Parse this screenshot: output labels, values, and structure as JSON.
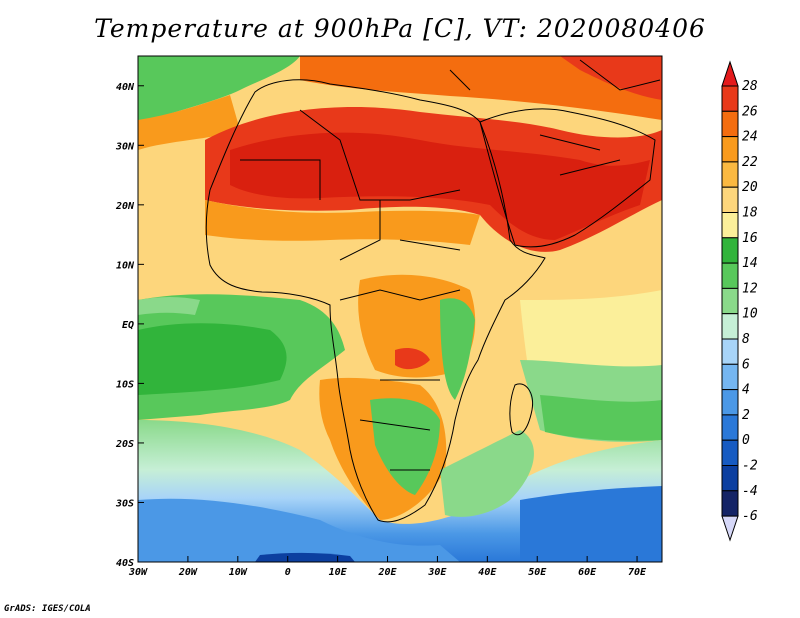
{
  "title": "Temperature at 900hPa [C], VT: 2020080406",
  "credit": "GrADS: IGES/COLA",
  "axes": {
    "x_ticks": [
      "30W",
      "20W",
      "10W",
      "0",
      "10E",
      "20E",
      "30E",
      "40E",
      "50E",
      "60E",
      "70E"
    ],
    "y_ticks": [
      "40N",
      "30N",
      "20N",
      "10N",
      "EQ",
      "10S",
      "20S",
      "30S",
      "40S"
    ],
    "lon_range": [
      -30,
      75
    ],
    "lat_range": [
      -40,
      45
    ]
  },
  "colorbar": {
    "levels": [
      "28",
      "26",
      "24",
      "22",
      "20",
      "18",
      "16",
      "14",
      "12",
      "10",
      "8",
      "6",
      "4",
      "2",
      "0",
      "-2",
      "-4",
      "-6"
    ],
    "colors": [
      "#e41a1c",
      "#e8391a",
      "#f46d0f",
      "#f99a1c",
      "#fbb941",
      "#fdd67c",
      "#fbef9a",
      "#31b43b",
      "#58c85b",
      "#8ad98a",
      "#c6efd6",
      "#a8d4f8",
      "#75b6f1",
      "#4b98e6",
      "#2a78d8",
      "#175bc2",
      "#0c3fa0",
      "#142466",
      "#d6d8f8"
    ]
  }
}
